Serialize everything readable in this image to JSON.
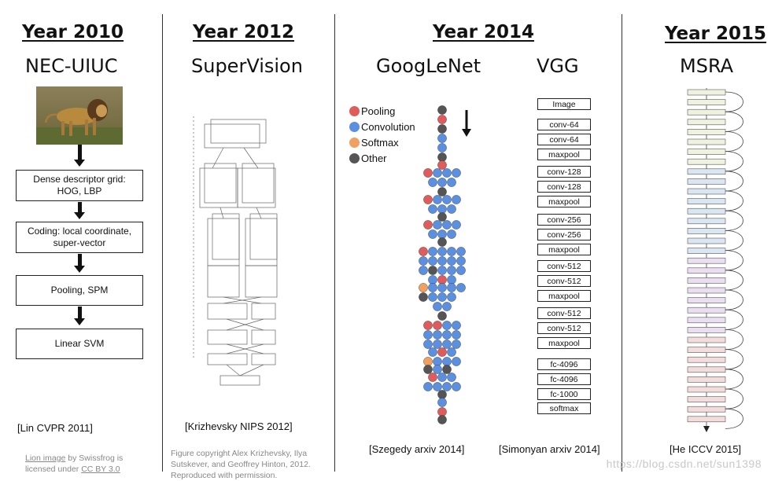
{
  "columns": {
    "y2010": {
      "year": "Year 2010",
      "model": "NEC-UIUC",
      "citation": "[Lin CVPR 2011]"
    },
    "y2012": {
      "year": "Year 2012",
      "model": "SuperVision",
      "citation": "[Krizhevsky NIPS 2012]"
    },
    "y2014": {
      "year": "Year 2014",
      "model_a": "GoogLeNet",
      "model_b": "VGG",
      "citation_a": "[Szegedy arxiv 2014]",
      "citation_b": "[Simonyan arxiv 2014]"
    },
    "y2015": {
      "year": "Year 2015",
      "model": "MSRA",
      "citation": "[He ICCV 2015]"
    }
  },
  "nec_pipeline": [
    "Dense descriptor grid: HOG, LBP",
    "Coding: local coordinate, super-vector",
    "Pooling, SPM",
    "Linear SVM"
  ],
  "lion_credit": {
    "link1": "Lion image",
    "text1": " by Swissfrog is",
    "text2": "licensed under ",
    "link2": "CC BY 3.0"
  },
  "alexnet_credit": "Figure copyright Alex Krizhevsky, Ilya Sutskever, and Geoffrey Hinton, 2012. Reproduced with permission.",
  "googlenet_legend": [
    {
      "label": "Pooling",
      "color": "#e05b5b"
    },
    {
      "label": "Convolution",
      "color": "#5b8fe0"
    },
    {
      "label": "Softmax",
      "color": "#f0a060"
    },
    {
      "label": "Other",
      "color": "#555555"
    }
  ],
  "vgg_layers": [
    "Image",
    "conv-64",
    "conv-64",
    "maxpool",
    "conv-128",
    "conv-128",
    "maxpool",
    "conv-256",
    "conv-256",
    "maxpool",
    "conv-512",
    "conv-512",
    "maxpool",
    "conv-512",
    "conv-512",
    "maxpool",
    "fc-4096",
    "fc-4096",
    "fc-1000",
    "softmax"
  ],
  "watermark": "https://blog.csdn.net/sun1398"
}
